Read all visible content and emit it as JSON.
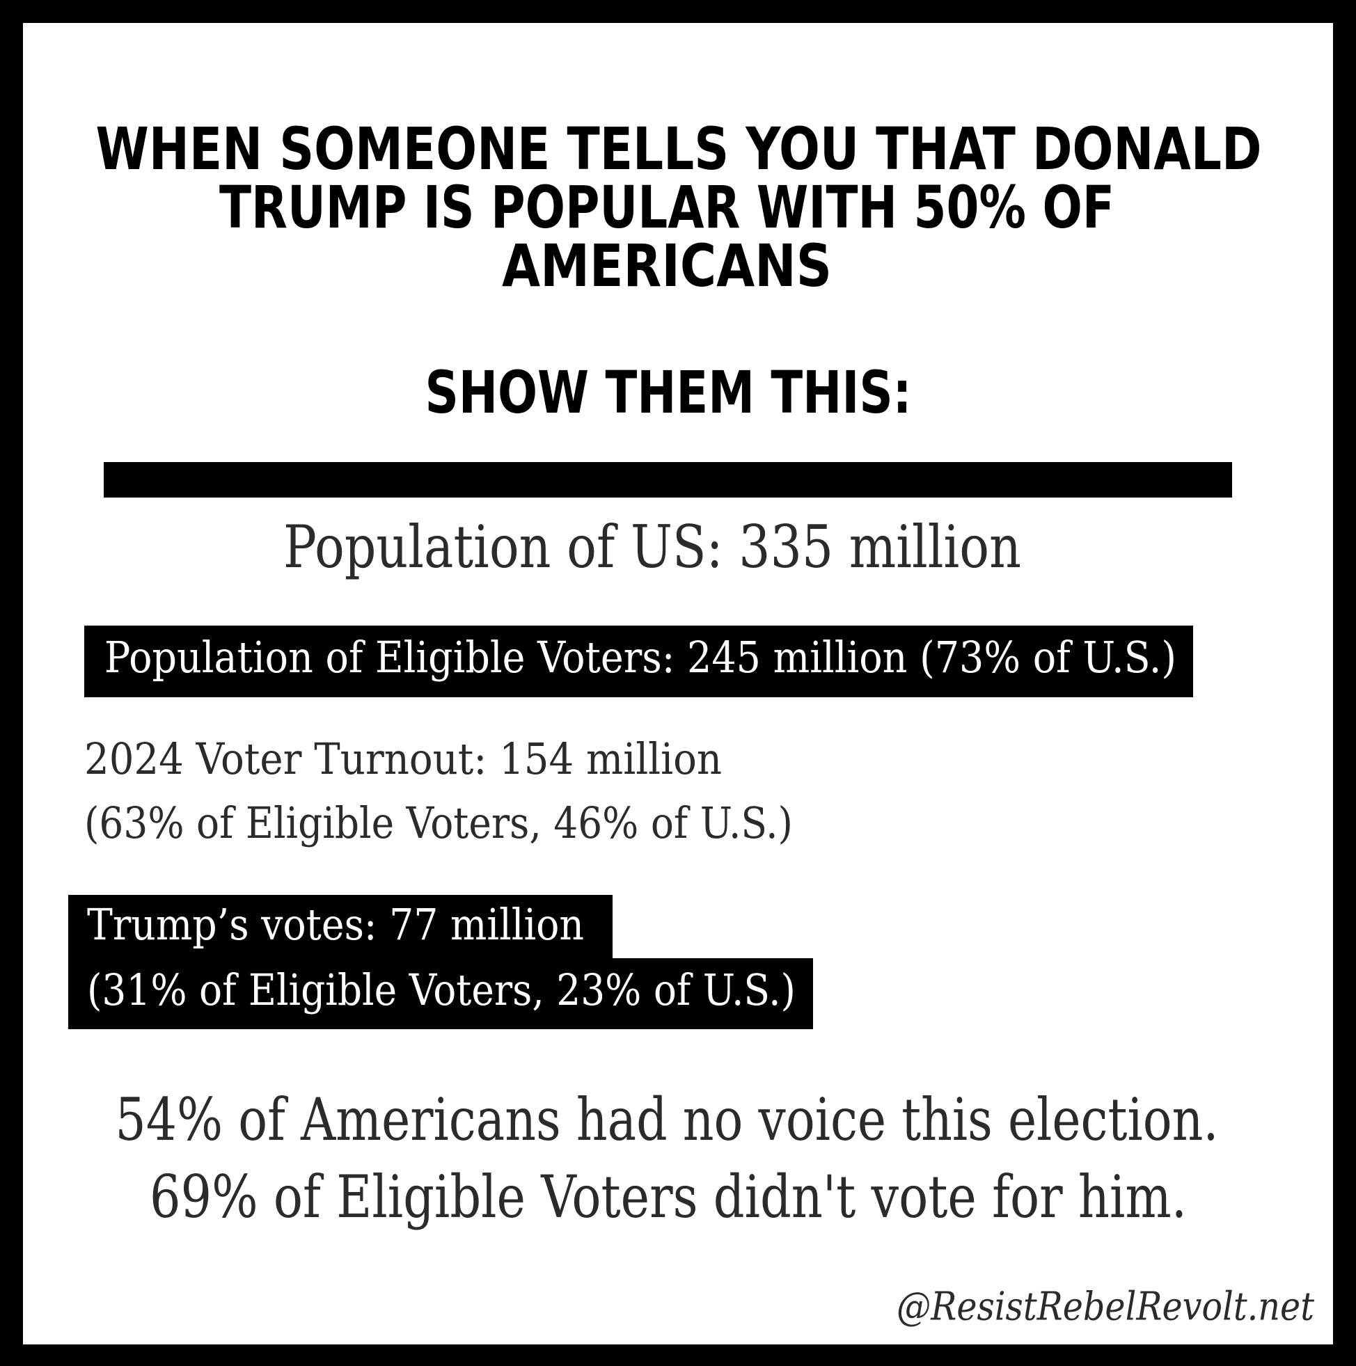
{
  "heading": {
    "lines": [
      "WHEN SOMEONE TELLS YOU THAT DONALD",
      "TRUMP IS POPULAR WITH 50% OF",
      "AMERICANS"
    ],
    "call_to_action": "SHOW THEM THIS:"
  },
  "population": "Population of US: 335 million",
  "eligible_voters": "Population of Eligible Voters: 245 million (73% of U.S.)",
  "turnout": {
    "lines": [
      "2024 Voter Turnout: 154 million",
      "(63% of Eligible Voters, 46% of U.S.)"
    ]
  },
  "trump_votes": {
    "lines": [
      "Trump’s votes: 77 million",
      "(31% of Eligible Voters, 23% of U.S.)"
    ]
  },
  "conclusion": {
    "lines": [
      "54% of Americans had no voice this election.",
      "69% of Eligible Voters didn't vote for him."
    ]
  },
  "credit": "@ResistRebelRevolt.net"
}
